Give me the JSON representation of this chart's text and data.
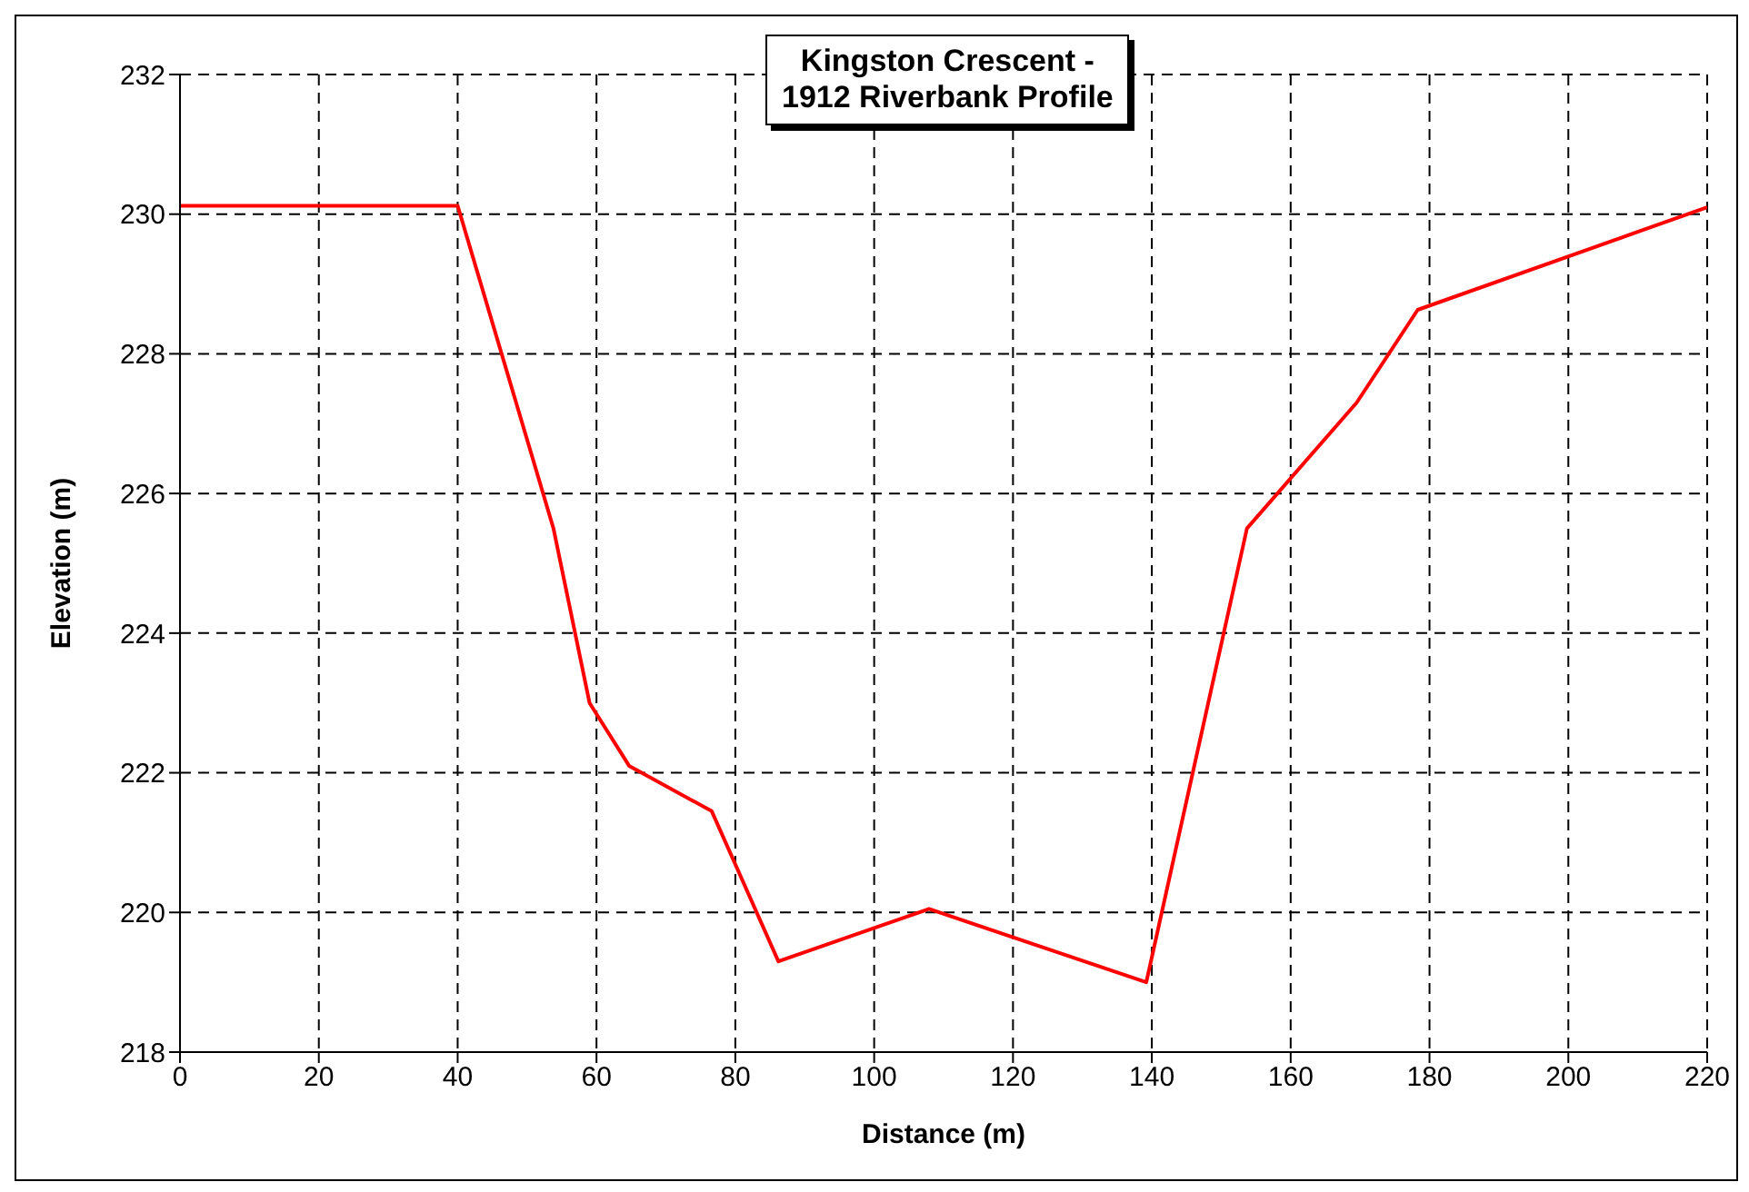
{
  "chart_data": {
    "type": "line",
    "title": "Kingston Crescent -\n1912 Riverbank Profile",
    "xlabel": "Distance (m)",
    "ylabel": "Elevation (m)",
    "series": [
      {
        "color": "#ff0000",
        "x": [
          0,
          40,
          53.8,
          59,
          64.7,
          76.6,
          86.2,
          107.9,
          139.2,
          153.7,
          169.5,
          178.3,
          220
        ],
        "values": [
          230.12,
          230.12,
          225.5,
          223.0,
          222.1,
          221.45,
          219.3,
          220.05,
          219.0,
          225.5,
          227.3,
          228.63,
          230.1
        ]
      }
    ],
    "xlim": [
      0,
      220
    ],
    "xticks": [
      0,
      20,
      40,
      60,
      80,
      100,
      120,
      140,
      160,
      180,
      200,
      220
    ],
    "ylim": [
      218,
      232
    ],
    "yticks": [
      218,
      220,
      222,
      224,
      226,
      228,
      230,
      232
    ],
    "grid": true,
    "legend": false,
    "marker": "none",
    "line_style": "solid"
  }
}
